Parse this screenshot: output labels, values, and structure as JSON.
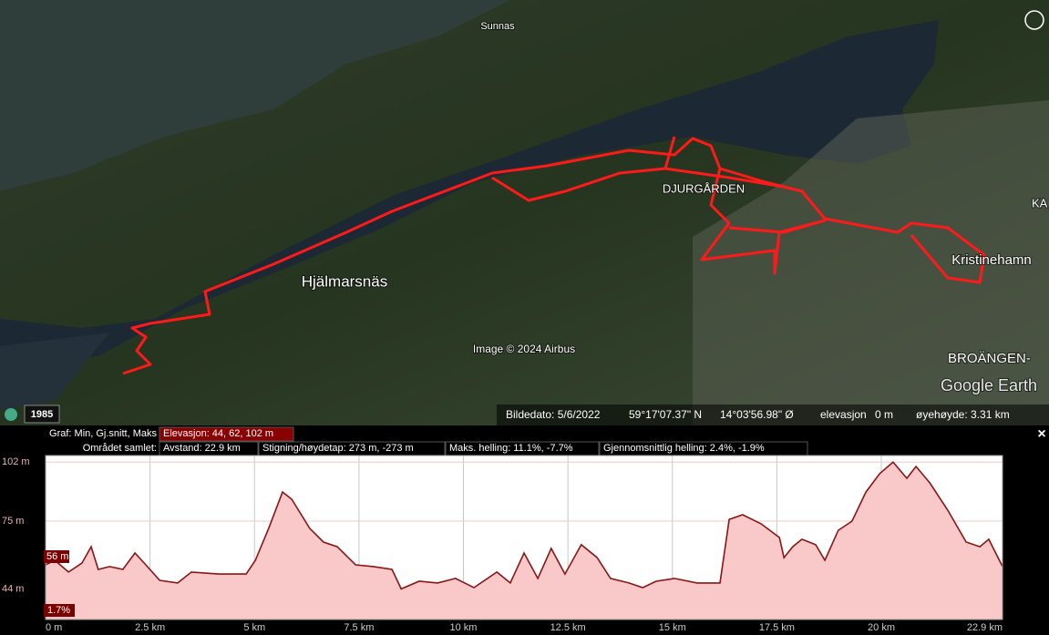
{
  "map": {
    "labels": [
      "Sunnas",
      "DJURGÅRDEN",
      "Hjälmarsnäs",
      "Kristinehamn",
      "BROÄNGEN-",
      "KA"
    ],
    "copyright": "Image © 2024 Airbus",
    "brand": "Google Earth",
    "history_year": "1985"
  },
  "status_bar": {
    "image_date": "Bildedato: 5/6/2022",
    "latitude": "59°17'07.37\" N",
    "longitude": "14°03'56.98\" Ø",
    "elevation_label": "elevasjon",
    "elevation_value": "0 m",
    "eye_altitude": "øyehøyde: 3.31 km"
  },
  "profile_stats": {
    "graph_label": "Graf: Min, Gj.snitt, Maks",
    "elevation": "Elevasjon: 44, 62, 102 m",
    "area_label": "Området samlet:",
    "distance": "Avstand: 22.9 km",
    "climb": "Stigning/høydetap: 273 m, -273 m",
    "max_slope": "Maks. helling: 11.1%, -7.7%",
    "avg_slope": "Gjennomsnittlig helling: 2.4%, -1.9%",
    "close": "×"
  },
  "chart_data": {
    "type": "area",
    "x": [
      0,
      0.22,
      0.55,
      0.87,
      1.09,
      1.26,
      1.53,
      1.85,
      2.14,
      2.4,
      2.73,
      3.16,
      3.49,
      4.14,
      4.8,
      5.02,
      5.34,
      5.67,
      5.89,
      6.32,
      6.65,
      6.98,
      7.42,
      7.85,
      8.29,
      8.51,
      8.94,
      9.38,
      9.81,
      10.25,
      10.8,
      11.12,
      11.45,
      11.78,
      12.1,
      12.43,
      12.82,
      13.2,
      13.52,
      13.96,
      14.29,
      14.61,
      15.05,
      15.59,
      16.14,
      16.36,
      16.68,
      17.12,
      17.56,
      17.67,
      17.88,
      18.1,
      18.43,
      18.65,
      18.97,
      19.3,
      19.63,
      19.96,
      20.28,
      20.61,
      20.83,
      21.16,
      21.59,
      22.03,
      22.36,
      22.57,
      22.9
    ],
    "values": [
      55,
      57.1,
      51.7,
      55.8,
      63.3,
      52.9,
      54.2,
      52.9,
      60.4,
      55,
      47.9,
      46.7,
      51.7,
      50.8,
      50.8,
      57.1,
      71.7,
      88.3,
      85,
      71.7,
      65.4,
      63.3,
      55,
      54.2,
      52.9,
      44,
      47.5,
      46.7,
      48.8,
      44.6,
      51.7,
      46.7,
      60.4,
      48.8,
      62.5,
      50.8,
      64.2,
      58.3,
      48.8,
      46.7,
      44.6,
      47.5,
      48.8,
      46.7,
      46.7,
      75.8,
      77.9,
      73.8,
      67.5,
      58.3,
      63.3,
      66.7,
      64.2,
      57.1,
      70.8,
      75,
      88.3,
      96.7,
      102,
      94.6,
      100,
      92.5,
      80,
      65.4,
      63.3,
      66.7,
      54.2
    ],
    "color": "#8b1414",
    "fill_color": "#f9c9c9",
    "xlim": [
      0,
      22.9
    ],
    "xticks": [
      {
        "value": 0,
        "label": "0 m"
      },
      {
        "value": 2.5,
        "label": "2.5 km"
      },
      {
        "value": 5,
        "label": "5 km"
      },
      {
        "value": 7.5,
        "label": "7.5 km"
      },
      {
        "value": 10,
        "label": "10 km"
      },
      {
        "value": 12.5,
        "label": "12.5 km"
      },
      {
        "value": 15,
        "label": "15 km"
      },
      {
        "value": 17.5,
        "label": "17.5 km"
      },
      {
        "value": 20,
        "label": "20 km"
      },
      {
        "value": 22.9,
        "label": "22.9 km"
      }
    ],
    "ylim": [
      30,
      105
    ],
    "yticks": [
      {
        "value": 44,
        "label": "44 m"
      },
      {
        "value": 75,
        "label": "75 m"
      },
      {
        "value": 102,
        "label": "102 m"
      }
    ],
    "grid": true,
    "cursor_elevation": "56 m",
    "cursor_grade": "1.7%"
  }
}
